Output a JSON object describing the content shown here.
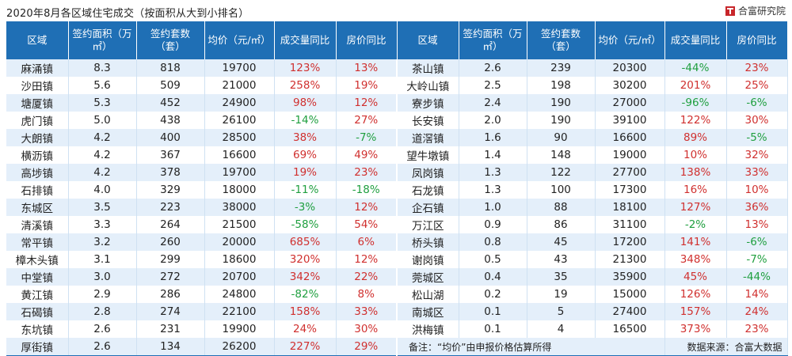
{
  "header": {
    "title": "2020年8月各区域住宅成交（按面积从大到小排名）",
    "brand": "合富研究院"
  },
  "columns": [
    "区域",
    "签约面积（万㎡）",
    "签约套数（套）",
    "均价（元/㎡）",
    "成交量同比",
    "房价同比"
  ],
  "footer": {
    "note": "备注：“均价”由申报价格估算所得",
    "source": "数据来源：合富大数据"
  },
  "colors": {
    "header_bg": "#1f6fb5",
    "row_alt": "#e4effa",
    "positive": "#d0302f",
    "negative": "#1f9f3f"
  },
  "chart_data": {
    "type": "table",
    "title": "2020年8月各区域住宅成交（按面积从大到小排名）",
    "columns": [
      "区域",
      "签约面积（万㎡）",
      "签约套数（套）",
      "均价（元/㎡）",
      "成交量同比",
      "房价同比"
    ],
    "left_rows": [
      [
        "麻涌镇",
        "8.3",
        "818",
        "19700",
        "123%",
        "13%"
      ],
      [
        "沙田镇",
        "5.6",
        "509",
        "21000",
        "258%",
        "19%"
      ],
      [
        "塘厦镇",
        "5.3",
        "452",
        "24900",
        "98%",
        "12%"
      ],
      [
        "虎门镇",
        "5.0",
        "438",
        "26100",
        "-14%",
        "27%"
      ],
      [
        "大朗镇",
        "4.2",
        "400",
        "28500",
        "38%",
        "-7%"
      ],
      [
        "横沥镇",
        "4.2",
        "367",
        "16600",
        "69%",
        "49%"
      ],
      [
        "高埗镇",
        "4.2",
        "378",
        "19700",
        "19%",
        "23%"
      ],
      [
        "石排镇",
        "4.0",
        "329",
        "18000",
        "-11%",
        "-18%"
      ],
      [
        "东城区",
        "3.5",
        "223",
        "38000",
        "-3%",
        "12%"
      ],
      [
        "清溪镇",
        "3.3",
        "264",
        "21500",
        "-58%",
        "54%"
      ],
      [
        "常平镇",
        "3.2",
        "260",
        "20000",
        "685%",
        "6%"
      ],
      [
        "樟木头镇",
        "3.1",
        "299",
        "18600",
        "320%",
        "12%"
      ],
      [
        "中堂镇",
        "3.0",
        "272",
        "20700",
        "342%",
        "22%"
      ],
      [
        "黄江镇",
        "2.9",
        "286",
        "24800",
        "-82%",
        "8%"
      ],
      [
        "石碣镇",
        "2.8",
        "274",
        "22100",
        "158%",
        "33%"
      ],
      [
        "东坑镇",
        "2.6",
        "231",
        "19900",
        "24%",
        "30%"
      ],
      [
        "厚街镇",
        "2.6",
        "134",
        "26200",
        "227%",
        "29%"
      ]
    ],
    "right_rows": [
      [
        "茶山镇",
        "2.6",
        "239",
        "20300",
        "-44%",
        "23%"
      ],
      [
        "大岭山镇",
        "2.5",
        "198",
        "30200",
        "201%",
        "25%"
      ],
      [
        "寮步镇",
        "2.4",
        "190",
        "27000",
        "-96%",
        "-6%"
      ],
      [
        "长安镇",
        "2.0",
        "190",
        "39100",
        "122%",
        "30%"
      ],
      [
        "道滘镇",
        "1.6",
        "90",
        "16600",
        "89%",
        "-5%"
      ],
      [
        "望牛墩镇",
        "1.4",
        "148",
        "19000",
        "10%",
        "32%"
      ],
      [
        "凤岗镇",
        "1.3",
        "122",
        "27700",
        "138%",
        "33%"
      ],
      [
        "石龙镇",
        "1.3",
        "100",
        "17300",
        "16%",
        "10%"
      ],
      [
        "企石镇",
        "1.0",
        "88",
        "18100",
        "127%",
        "36%"
      ],
      [
        "万江区",
        "0.9",
        "86",
        "31100",
        "-2%",
        "13%"
      ],
      [
        "桥头镇",
        "0.8",
        "45",
        "17200",
        "141%",
        "-6%"
      ],
      [
        "谢岗镇",
        "0.5",
        "43",
        "21300",
        "348%",
        "-7%"
      ],
      [
        "莞城区",
        "0.4",
        "35",
        "35900",
        "45%",
        "-44%"
      ],
      [
        "松山湖",
        "0.2",
        "19",
        "15000",
        "126%",
        "14%"
      ],
      [
        "南城区",
        "0.1",
        "5",
        "27400",
        "157%",
        "24%"
      ],
      [
        "洪梅镇",
        "0.1",
        "4",
        "16500",
        "373%",
        "23%"
      ]
    ]
  }
}
